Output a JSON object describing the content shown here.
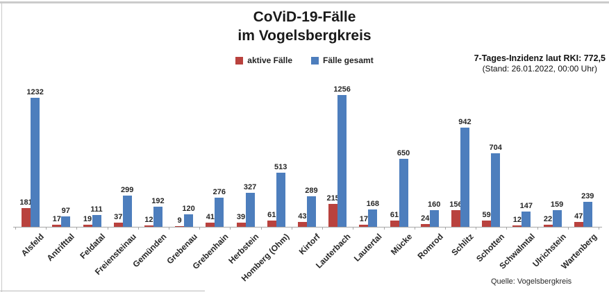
{
  "header": {
    "title_line1": "CoViD-19-Fälle",
    "title_line2": "im Vogelsbergkreis",
    "incidence_line1": "7-Tages-Inzidenz laut RKI: 772,5",
    "incidence_line2": "(Stand: 26.01.2022, 00:00 Uhr)"
  },
  "footer": {
    "source": "Quelle: Vogelsbergkreis"
  },
  "colors": {
    "active_cases": "#b9423e",
    "total_cases": "#4d7ebd",
    "axis": "#a6a6a6"
  },
  "chart_data": {
    "type": "bar",
    "title": "CoViD-19-Fälle im Vogelsbergkreis",
    "xlabel": "",
    "ylabel": "",
    "ylim": [
      0,
      1256
    ],
    "grid": false,
    "legend_position": "top-center",
    "value_labels": true,
    "categories": [
      "Alsfeld",
      "Antrifttal",
      "Feldatal",
      "Freiensteinau",
      "Gemünden",
      "Grebenau",
      "Grebenhain",
      "Herbstein",
      "Homberg (Ohm)",
      "Kirtorf",
      "Lauterbach",
      "Lautertal",
      "Mücke",
      "Romrod",
      "Schlitz",
      "Schotten",
      "Schwalmtal",
      "Ulrichstein",
      "Wartenberg"
    ],
    "series": [
      {
        "name": "aktive Fälle",
        "color": "#b9423e",
        "values": [
          181,
          17,
          19,
          37,
          12,
          9,
          41,
          39,
          61,
          43,
          215,
          17,
          61,
          24,
          156,
          59,
          12,
          22,
          47
        ]
      },
      {
        "name": "Fälle gesamt",
        "color": "#4d7ebd",
        "values": [
          1232,
          97,
          111,
          299,
          192,
          120,
          276,
          327,
          513,
          289,
          1256,
          168,
          650,
          160,
          942,
          704,
          147,
          159,
          239
        ]
      }
    ],
    "annotations": [
      "7-Tages-Inzidenz laut RKI: 772,5",
      "(Stand: 26.01.2022, 00:00 Uhr)",
      "Quelle: Vogelsbergkreis"
    ]
  }
}
